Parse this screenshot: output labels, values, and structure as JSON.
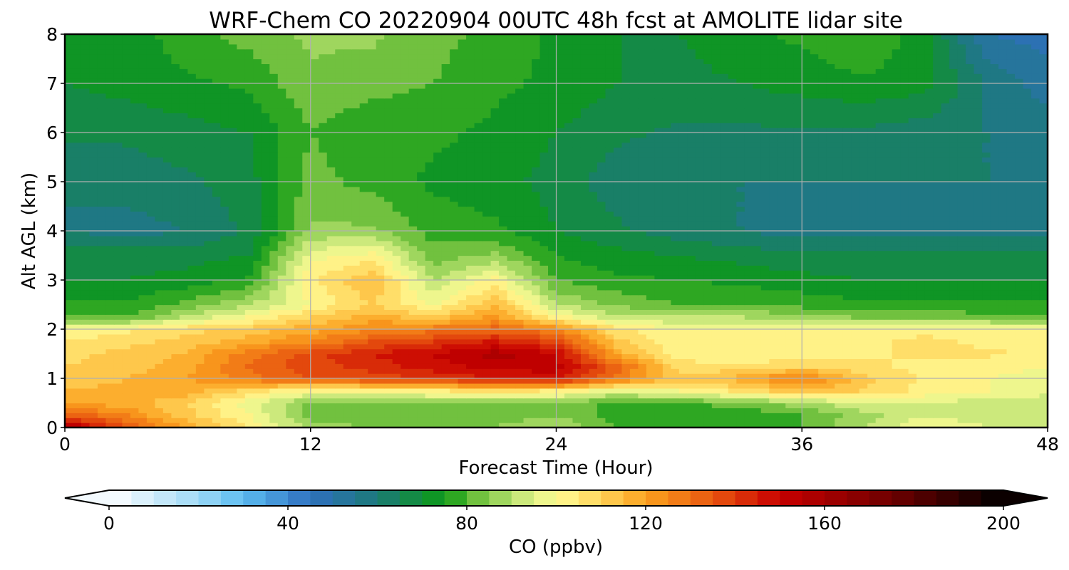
{
  "chart_data": {
    "type": "heatmap",
    "title": "WRF-Chem CO  20220904 00UTC 48h fcst at AMOLITE lidar site",
    "xlabel": "Forecast Time (Hour)",
    "ylabel": "Alt AGL (km)",
    "xlim": [
      0,
      48
    ],
    "ylim": [
      0,
      8
    ],
    "xticks": [
      0,
      12,
      24,
      36,
      48
    ],
    "yticks": [
      0,
      1,
      2,
      3,
      4,
      5,
      6,
      7,
      8
    ],
    "grid": true,
    "x": [
      0,
      3,
      6,
      9,
      12,
      15,
      18,
      21,
      24,
      27,
      30,
      33,
      36,
      39,
      42,
      45,
      48
    ],
    "y": [
      0,
      0.25,
      0.5,
      0.75,
      1,
      1.25,
      1.5,
      1.75,
      2,
      2.25,
      2.5,
      3,
      3.5,
      4,
      5,
      6,
      7,
      8
    ],
    "z": [
      [
        160,
        135,
        118,
        105,
        88,
        85,
        85,
        85,
        90,
        80,
        78,
        78,
        80,
        90,
        100,
        95,
        92
      ],
      [
        135,
        125,
        112,
        100,
        82,
        80,
        80,
        82,
        85,
        78,
        76,
        76,
        80,
        88,
        95,
        92,
        90
      ],
      [
        118,
        118,
        110,
        97,
        84,
        82,
        82,
        85,
        84,
        78,
        80,
        82,
        88,
        95,
        95,
        92,
        90
      ],
      [
        115,
        118,
        118,
        108,
        100,
        100,
        104,
        108,
        104,
        96,
        100,
        106,
        115,
        110,
        103,
        100,
        98
      ],
      [
        110,
        115,
        120,
        128,
        135,
        138,
        140,
        145,
        148,
        128,
        112,
        118,
        128,
        112,
        104,
        100,
        98
      ],
      [
        110,
        112,
        118,
        130,
        138,
        142,
        148,
        152,
        152,
        132,
        108,
        105,
        110,
        106,
        104,
        102,
        100
      ],
      [
        108,
        112,
        116,
        128,
        138,
        145,
        150,
        158,
        150,
        118,
        102,
        100,
        102,
        104,
        106,
        106,
        104
      ],
      [
        106,
        108,
        112,
        118,
        125,
        135,
        140,
        146,
        138,
        112,
        100,
        100,
        102,
        104,
        106,
        104,
        102
      ],
      [
        100,
        104,
        108,
        112,
        118,
        125,
        128,
        132,
        125,
        106,
        100,
        100,
        102,
        102,
        104,
        102,
        100
      ],
      [
        80,
        80,
        92,
        100,
        110,
        118,
        112,
        122,
        102,
        92,
        90,
        90,
        88,
        84,
        84,
        82,
        80
      ],
      [
        76,
        76,
        82,
        90,
        100,
        110,
        100,
        115,
        90,
        84,
        80,
        80,
        78,
        76,
        76,
        76,
        76
      ],
      [
        70,
        70,
        72,
        76,
        104,
        115,
        90,
        102,
        80,
        76,
        75,
        74,
        72,
        70,
        70,
        70,
        70
      ],
      [
        68,
        68,
        68,
        70,
        98,
        102,
        82,
        86,
        75,
        72,
        70,
        68,
        66,
        66,
        66,
        66,
        66
      ],
      [
        60,
        58,
        60,
        66,
        86,
        86,
        78,
        76,
        70,
        66,
        62,
        60,
        58,
        58,
        58,
        58,
        58
      ],
      [
        60,
        62,
        64,
        68,
        82,
        78,
        74,
        72,
        68,
        62,
        60,
        60,
        60,
        60,
        60,
        60,
        60
      ],
      [
        66,
        66,
        68,
        70,
        80,
        76,
        76,
        74,
        70,
        66,
        64,
        64,
        64,
        64,
        62,
        60,
        58
      ],
      [
        70,
        72,
        74,
        76,
        84,
        82,
        80,
        76,
        74,
        70,
        68,
        70,
        72,
        74,
        72,
        60,
        52
      ],
      [
        70,
        72,
        78,
        82,
        86,
        86,
        82,
        78,
        74,
        70,
        70,
        74,
        76,
        80,
        72,
        50,
        48
      ]
    ],
    "colorbar": {
      "label": "CO  (ppbv)",
      "min": 0,
      "max": 200,
      "step": 5,
      "ticks": [
        0,
        40,
        80,
        120,
        160,
        200
      ],
      "extend": "both",
      "colormap": [
        [
          0,
          "#ffffff"
        ],
        [
          20,
          "#9fd9f6"
        ],
        [
          30,
          "#5bbcf0"
        ],
        [
          45,
          "#2f6fbf"
        ],
        [
          60,
          "#1c7a78"
        ],
        [
          75,
          "#0c9a14"
        ],
        [
          82,
          "#6cbf3c"
        ],
        [
          92,
          "#c9e87a"
        ],
        [
          100,
          "#fffc96"
        ],
        [
          110,
          "#ffd45a"
        ],
        [
          120,
          "#fba11f"
        ],
        [
          135,
          "#e8560f"
        ],
        [
          150,
          "#c80000"
        ],
        [
          175,
          "#6e0000"
        ],
        [
          200,
          "#000000"
        ]
      ]
    }
  }
}
